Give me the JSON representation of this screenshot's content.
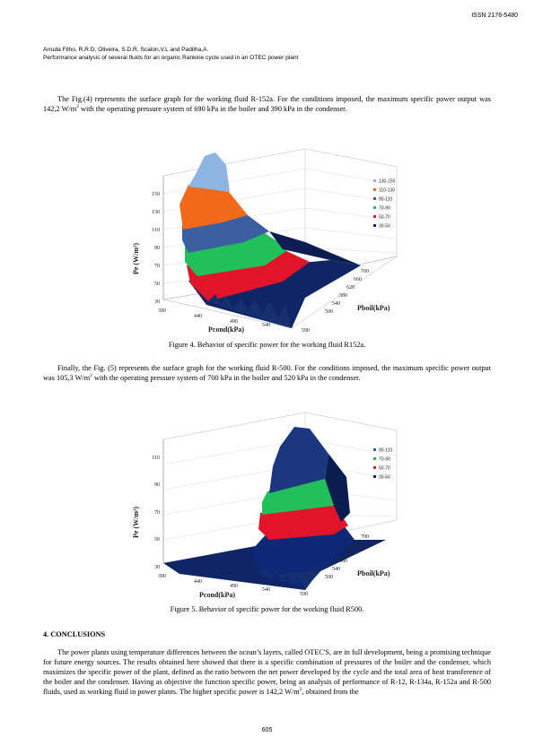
{
  "header": {
    "issn": "ISSN 2176-5480",
    "authors": "Arruda Filho, R.R.D, Oliveira, S.D.R, Scalon,V.L and Padilha,A.",
    "title": "Performance analysis of several fluids for an organic Rankine cycle used in an OTEC power plant"
  },
  "para1": {
    "a": "The Fig.(4) represents the surface graph for the working fluid R-152a. For the conditions imposed, the maximum specific power output was 142,2 W/m",
    "sup": "2",
    "b": " with the operating pressure system of 690 kPa in the boiler and 390 kPa in the condenser."
  },
  "figure4": {
    "caption": "Figure 4. Behavior of specific power for the working fluid R152a.",
    "chart_data": {
      "type": "surface",
      "ylabel": "Pe (W/m²)",
      "xlabel": "Pcond(kPa)",
      "zlabel": "Pboil(kPa)",
      "y_ticks": [
        "150",
        "130",
        "110",
        "90",
        "70",
        "50",
        "30"
      ],
      "x_ticks": [
        "390",
        "440",
        "490",
        "540",
        "590"
      ],
      "z_ticks": [
        "700",
        "660",
        "620",
        "580",
        "540",
        "500"
      ],
      "legend": [
        "130-150",
        "110-130",
        "90-110",
        "70-90",
        "50-70",
        "30-50"
      ],
      "max": {
        "value": 142.2,
        "boiler_kPa": 690,
        "condenser_kPa": 390
      }
    }
  },
  "para2": {
    "a": "Finally, the Fig. (5) represents the surface graph for the working fluid R-500. For the conditions imposed, the maximum specific power output was 105,3 W/m",
    "sup": "2",
    "b": " with the operating pressure system of 700 kPa in the boiler and 520 kPa in the condenser."
  },
  "figure5": {
    "caption": "Figure 5. Behavior of specific power for the working fluid R500.",
    "chart_data": {
      "type": "surface",
      "ylabel": "Pe (W/m²)",
      "xlabel": "Pcond(kPa)",
      "zlabel": "Pboil(kPa)",
      "y_ticks": [
        "110",
        "90",
        "70",
        "50",
        "30"
      ],
      "x_ticks": [
        "390",
        "440",
        "490",
        "540",
        "590"
      ],
      "z_ticks": [
        "700",
        "660",
        "620",
        "580",
        "540",
        "500"
      ],
      "legend": [
        "90-110",
        "70-90",
        "50-70",
        "30-50"
      ],
      "max": {
        "value": 105.3,
        "boiler_kPa": 700,
        "condenser_kPa": 520
      }
    }
  },
  "section": {
    "heading": "4.  CONCLUSIONS"
  },
  "para3": {
    "a": "The power plants using temperature differences between the ocean’s layers, called OTEC'S, are in full development, being a promising technique for future energy sources. The results obtained here showed that there is a specific combination of pressures of the boiler and the condenser, which maximizes the specific power of the plant, defined as the ratio between the net power developed by the cycle and the total area of heat transference of the boiler and the condenser. Having as objective the function specific power, being an analysis of performance of R-12, R-134a, R-152a and R-500 fluids, used as working fluid in power plants. The higher specific power is 142,2 W/m",
    "sup": "2",
    "b": ", obtained from the"
  },
  "footer": {
    "page": "605"
  },
  "colors": {
    "c130_150": "#8fb4e3",
    "c110_130": "#f06a1a",
    "c90_110": "#3b5fa0",
    "c70_90": "#22c05a",
    "c50_70": "#e2142a",
    "c30_50": "#102566"
  }
}
